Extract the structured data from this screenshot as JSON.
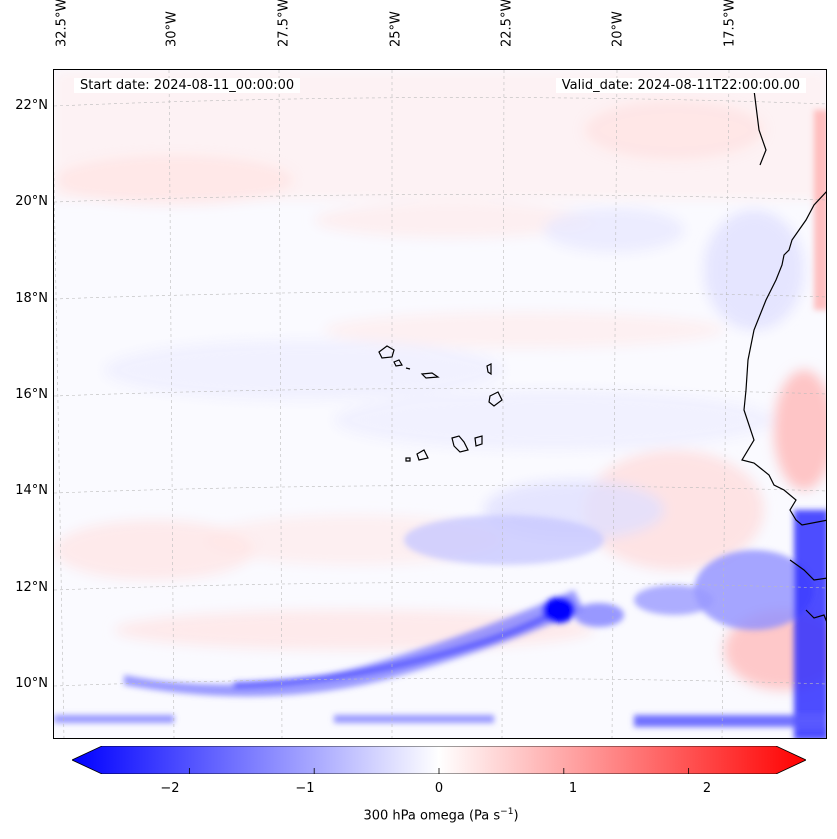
{
  "header": {
    "start_date": "Start date: 2024-08-11_00:00:00",
    "valid_date": "Valid_date: 2024-08-11T22:00:00.00"
  },
  "axes": {
    "lon_ticks": [
      "32.5°W",
      "30°W",
      "27.5°W",
      "25°W",
      "22.5°W",
      "20°W",
      "17.5°W"
    ],
    "lat_ticks": [
      "22°N",
      "20°N",
      "18°N",
      "16°N",
      "14°N",
      "12°N",
      "10°N"
    ]
  },
  "colorbar": {
    "ticks": [
      "−2",
      "−1",
      "0",
      "1",
      "2"
    ],
    "label_prefix": "300 hPa omega (Pa s",
    "label_exp": "−1",
    "label_suffix": ")",
    "min": -2.7,
    "max": 2.7,
    "colors": {
      "negative": "#0000ff",
      "zero": "#ffffff",
      "positive": "#ff0000"
    }
  },
  "colors": {
    "coast": "#000000",
    "grid": "#bbbbbb"
  }
}
